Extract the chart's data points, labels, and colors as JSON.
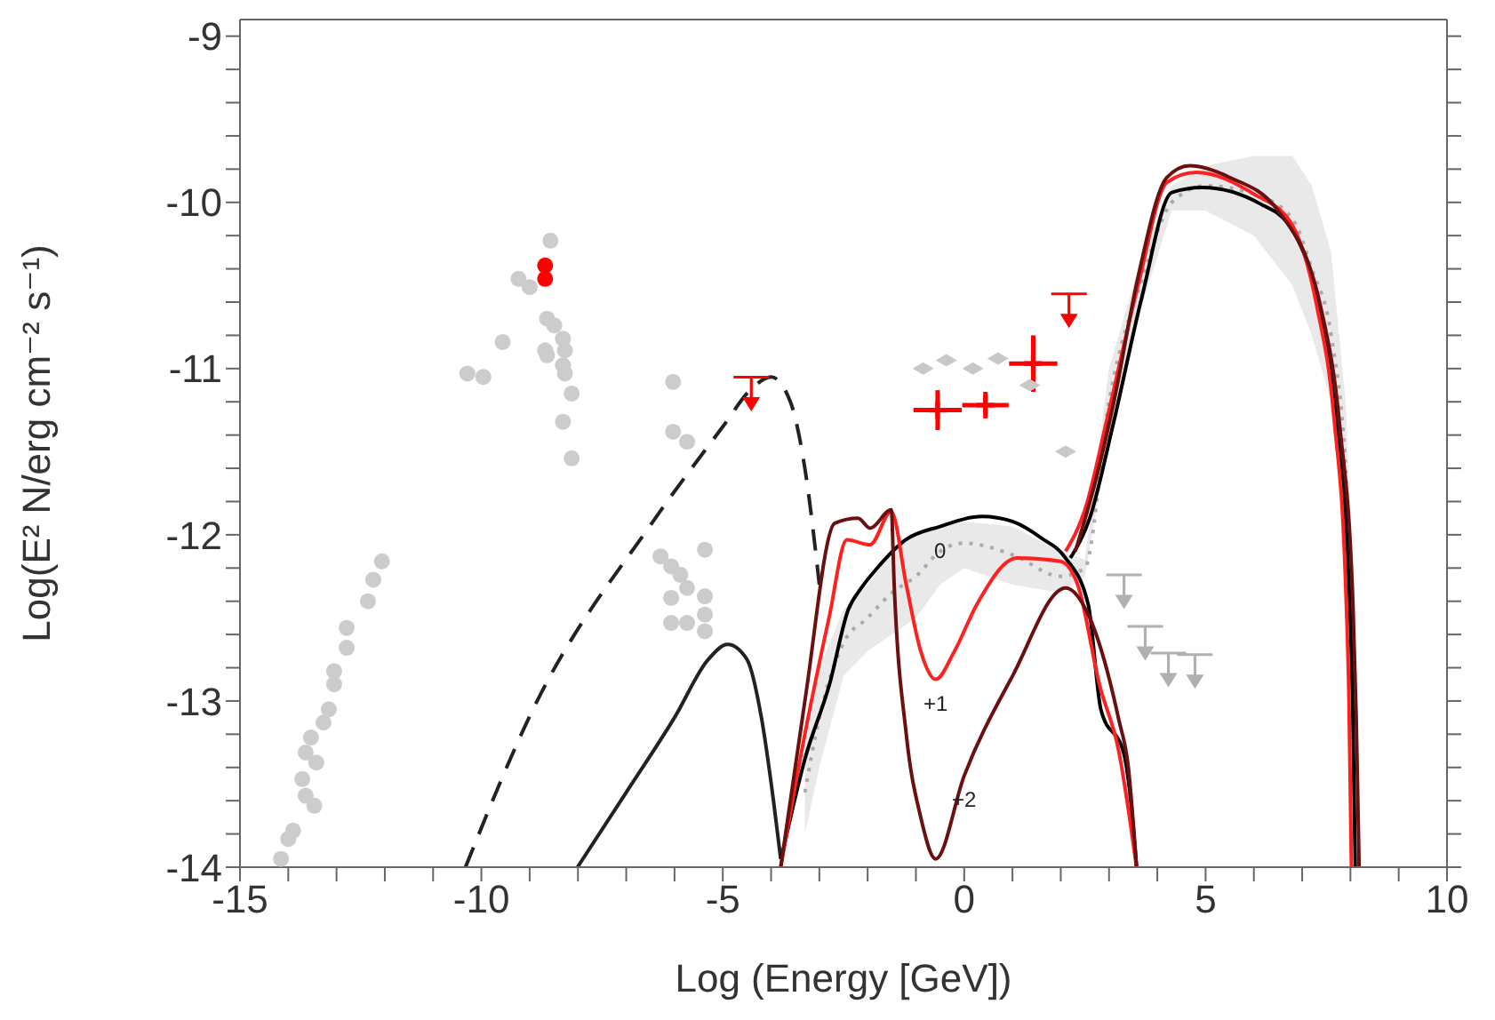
{
  "chart_data": {
    "type": "line",
    "xlabel": "Log (Energy [GeV])",
    "ylabel": "Log(E² N/erg cm⁻² s⁻¹)",
    "xlim": [
      -15,
      10
    ],
    "ylim": [
      -14,
      -8.9
    ],
    "xticks": [
      -15,
      {
        "value": -14,
        "label": null
      },
      {
        "value": -13,
        "label": null
      },
      {
        "value": -12,
        "label": null
      },
      {
        "value": -11,
        "label": null
      },
      -10,
      {
        "value": -9,
        "label": null
      },
      {
        "value": -8,
        "label": null
      },
      {
        "value": -7,
        "label": null
      },
      {
        "value": -6,
        "label": null
      },
      -5,
      {
        "value": -4,
        "label": null
      },
      {
        "value": -3,
        "label": null
      },
      {
        "value": -2,
        "label": null
      },
      {
        "value": -1,
        "label": null
      },
      0,
      {
        "value": 1,
        "label": null
      },
      {
        "value": 2,
        "label": null
      },
      {
        "value": 3,
        "label": null
      },
      {
        "value": 4,
        "label": null
      },
      5,
      {
        "value": 6,
        "label": null
      },
      {
        "value": 7,
        "label": null
      },
      {
        "value": 8,
        "label": null
      },
      {
        "value": 9,
        "label": null
      },
      10
    ],
    "yticks": [
      -14,
      {
        "value": -13.8,
        "label": null
      },
      {
        "value": -13.6,
        "label": null
      },
      {
        "value": -13.4,
        "label": null
      },
      {
        "value": -13.2,
        "label": null
      },
      -13,
      {
        "value": -12.8,
        "label": null
      },
      {
        "value": -12.6,
        "label": null
      },
      {
        "value": -12.4,
        "label": null
      },
      {
        "value": -12.2,
        "label": null
      },
      -12,
      {
        "value": -11.8,
        "label": null
      },
      {
        "value": -11.6,
        "label": null
      },
      {
        "value": -11.4,
        "label": null
      },
      {
        "value": -11.2,
        "label": null
      },
      -11,
      {
        "value": -10.8,
        "label": null
      },
      {
        "value": -10.6,
        "label": null
      },
      {
        "value": -10.4,
        "label": null
      },
      {
        "value": -10.2,
        "label": null
      },
      -10,
      {
        "value": -9.8,
        "label": null
      },
      {
        "value": -9.6,
        "label": null
      },
      {
        "value": -9.4,
        "label": null
      },
      {
        "value": -9.2,
        "label": null
      },
      -9
    ],
    "grid": false,
    "series": [
      {
        "line_style": "dotted",
        "color": "#9a9a9a",
        "x": [
          -3.3,
          -3.0,
          -2.5,
          -2.0,
          -1.5,
          -1.0,
          -0.5,
          0.0,
          1.0,
          2.0,
          2.5,
          3.0,
          3.7,
          4.3,
          5.0,
          6.0,
          6.8,
          7.2,
          7.6,
          7.9,
          8.1
        ],
        "values": [
          -13.55,
          -13.1,
          -12.65,
          -12.5,
          -12.35,
          -12.25,
          -12.1,
          -12.05,
          -12.12,
          -12.25,
          -12.2,
          -11.2,
          -10.45,
          -10.0,
          -9.9,
          -9.95,
          -10.1,
          -10.4,
          -10.8,
          -11.6,
          -12.9
        ],
        "lower": [
          -13.8,
          -13.4,
          -12.85,
          -12.7,
          -12.6,
          -12.5,
          -12.3,
          -12.2,
          -12.3,
          -12.35,
          -12.25,
          -11.4,
          -10.6,
          -10.05,
          -10.05,
          -10.2,
          -10.5,
          -10.8,
          -11.2,
          -12.0,
          -13.3
        ],
        "upper": [
          -13.3,
          -12.8,
          -12.45,
          -12.3,
          -12.1,
          -12.0,
          -11.95,
          -11.92,
          -11.95,
          -12.1,
          -12.15,
          -11.0,
          -10.3,
          -9.9,
          -9.78,
          -9.72,
          -9.72,
          -9.9,
          -10.3,
          -11.2,
          -12.5
        ]
      },
      {
        "type": "scatter",
        "marker": "circle",
        "color": "#cccccc",
        "x": [
          -14.15,
          -14.0,
          -13.9,
          -13.71,
          -13.64,
          -13.46,
          -13.64,
          -13.53,
          -13.42,
          -13.27,
          -13.16,
          -13.05,
          -13.05,
          -12.79,
          -12.79,
          -12.35,
          -12.24,
          -12.06,
          -10.29,
          -9.96,
          -9.56,
          -9.23,
          -9.0,
          -8.57,
          -8.64,
          -8.49,
          -8.68,
          -8.31,
          -8.27,
          -8.64,
          -8.31,
          -8.27,
          -8.13,
          -8.31,
          -8.13,
          -6.03,
          -6.03,
          -5.74,
          -6.29,
          -6.07,
          -5.88,
          -5.74,
          -6.07,
          -6.07,
          -5.74,
          -5.37,
          -5.37,
          -5.37,
          -5.37
        ],
        "values": [
          -13.95,
          -13.83,
          -13.78,
          -13.47,
          -13.57,
          -13.63,
          -13.31,
          -13.22,
          -13.37,
          -13.13,
          -13.05,
          -12.9,
          -12.82,
          -12.68,
          -12.56,
          -12.4,
          -12.27,
          -12.16,
          -11.03,
          -11.05,
          -10.84,
          -10.46,
          -10.51,
          -10.23,
          -10.7,
          -10.74,
          -10.89,
          -10.82,
          -10.89,
          -10.92,
          -10.98,
          -11.03,
          -11.15,
          -11.32,
          -11.54,
          -11.08,
          -11.38,
          -11.44,
          -12.13,
          -12.19,
          -12.24,
          -12.32,
          -12.38,
          -12.53,
          -12.53,
          -12.37,
          -12.48,
          -12.58,
          -12.09
        ]
      },
      {
        "type": "scatter",
        "marker": "diamond",
        "color": "#c8c8c8",
        "x": [
          -0.85,
          -0.37,
          0.18,
          0.7,
          1.36,
          2.1
        ],
        "values": [
          -11.0,
          -10.95,
          -11.0,
          -10.94,
          -11.1,
          -11.5
        ]
      },
      {
        "type": "scatter",
        "marker": "triangle",
        "color": "#b0b0b0",
        "x": [
          3.31,
          3.75,
          4.23,
          4.78
        ],
        "values": [
          -12.34,
          -12.65,
          -12.81,
          -12.82
        ]
      },
      {
        "type": "scatter",
        "marker": "circle",
        "color": "#ff0000",
        "x": [
          -8.68,
          -8.68
        ],
        "values": [
          -10.38,
          -10.46
        ]
      },
      {
        "type": "scatter",
        "marker": "triangle",
        "color": "#ff0000",
        "x": [
          -4.41,
          2.17
        ],
        "values": [
          -11.15,
          -10.65
        ]
      },
      {
        "type": "scatter",
        "marker": "cross",
        "color": "#ff0000",
        "x": [
          -0.55,
          0.44,
          1.43
        ],
        "values": [
          -11.25,
          -11.22,
          -10.97
        ],
        "errors": [
          0.12,
          0.08,
          0.17
        ],
        "xerrors": [
          0.5,
          0.48,
          0.5
        ]
      },
      {
        "line_style": "dashed",
        "color": "#222222",
        "x": [
          -10.33,
          -8.93,
          -6.47,
          -5.0,
          -4.4,
          -4.0,
          -3.6,
          -3.3,
          -3.0
        ],
        "values": [
          -14.0,
          -13.05,
          -11.93,
          -11.35,
          -11.12,
          -11.05,
          -11.2,
          -11.6,
          -12.3
        ]
      },
      {
        "line_style": "solid",
        "color": "#222222",
        "x": [
          -8.01,
          -7.0,
          -6.0,
          -5.3,
          -4.9,
          -4.5,
          -4.2,
          -3.95,
          -3.8
        ],
        "values": [
          -14.0,
          -13.55,
          -13.1,
          -12.75,
          -12.66,
          -12.75,
          -13.1,
          -13.6,
          -13.95
        ]
      },
      {
        "line_style": "solid",
        "color": "#000000",
        "x": [
          -3.79,
          -3.3,
          -2.79,
          -2.4,
          -2.13,
          -1.8,
          -1.21,
          -0.5,
          0.37,
          1.0,
          1.6,
          2.1,
          2.57,
          2.83,
          3.31,
          3.45,
          3.57
        ],
        "values": [
          -13.95,
          -13.35,
          -12.9,
          -12.45,
          -12.32,
          -12.2,
          -12.03,
          -11.95,
          -11.89,
          -11.92,
          -12.02,
          -12.14,
          -12.42,
          -13.05,
          -13.32,
          -13.6,
          -14.0
        ]
      },
      {
        "line_style": "solid",
        "color": "#ff2020",
        "x": [
          -3.8,
          -3.3,
          -2.8,
          -2.43,
          -1.95,
          -1.51,
          -1.2,
          -0.9,
          -0.59,
          -0.2,
          0.26,
          1.1,
          1.99,
          2.35,
          2.8,
          3.2,
          3.57
        ],
        "values": [
          -14.0,
          -13.2,
          -12.5,
          -12.03,
          -12.06,
          -11.86,
          -12.3,
          -12.7,
          -12.87,
          -12.7,
          -12.42,
          -12.14,
          -12.16,
          -12.3,
          -12.9,
          -13.3,
          -14.0
        ]
      },
      {
        "line_style": "solid",
        "color": "#6b1010",
        "x": [
          -3.8,
          -3.3,
          -2.68,
          -2.2,
          -1.95,
          -1.51,
          -1.45,
          -1.2,
          -0.9,
          -0.59,
          0.0,
          1.0,
          2.1,
          2.6,
          3.2,
          3.4,
          3.57
        ],
        "values": [
          -14.0,
          -13.0,
          -11.93,
          -11.9,
          -11.96,
          -11.85,
          -12.3,
          -13.2,
          -13.7,
          -13.95,
          -13.45,
          -12.85,
          -12.32,
          -12.5,
          -13.11,
          -13.4,
          -14.0
        ]
      },
      {
        "line_style": "solid",
        "color": "#000000",
        "x": [
          2.2,
          2.6,
          3.09,
          3.68,
          4.3,
          4.93,
          6.14,
          6.76,
          7.35,
          7.72,
          7.98,
          8.05,
          8.1
        ],
        "values": [
          -12.14,
          -11.9,
          -11.33,
          -10.57,
          -9.94,
          -9.91,
          -10.01,
          -10.15,
          -10.64,
          -11.33,
          -12.38,
          -13.08,
          -14.0
        ]
      },
      {
        "line_style": "solid",
        "color": "#ff2020",
        "x": [
          2.1,
          2.5,
          3.0,
          3.6,
          4.2,
          4.8,
          6.0,
          6.76,
          7.3,
          7.66,
          7.9,
          7.97,
          8.02
        ],
        "values": [
          -12.1,
          -11.85,
          -11.25,
          -10.5,
          -9.88,
          -9.82,
          -9.95,
          -10.12,
          -10.62,
          -11.3,
          -12.3,
          -13.0,
          -14.0
        ]
      },
      {
        "line_style": "solid",
        "color": "#6b1010",
        "x": [
          2.3,
          2.7,
          3.1,
          3.6,
          4.2,
          4.67,
          5.5,
          6.5,
          7.4,
          7.78,
          8.05,
          8.12,
          8.18
        ],
        "values": [
          -12.1,
          -11.7,
          -11.2,
          -10.45,
          -9.85,
          -9.78,
          -9.85,
          -10.05,
          -10.65,
          -11.35,
          -12.4,
          -13.1,
          -14.0
        ]
      }
    ],
    "annotations": [
      {
        "text": "0",
        "x": -0.5,
        "y": -11.95
      },
      {
        "text": "+1",
        "x": -0.59,
        "y": -12.87
      },
      {
        "text": "+2",
        "x": 0.0,
        "y": -13.45
      }
    ]
  }
}
